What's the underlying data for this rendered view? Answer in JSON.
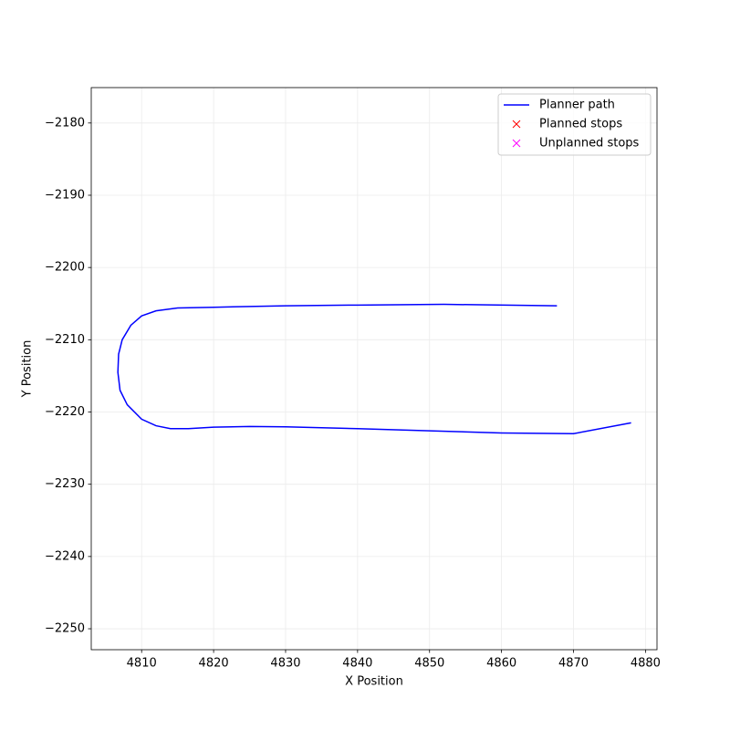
{
  "chart_data": {
    "type": "line",
    "xlabel": "X Position",
    "ylabel": "Y Position",
    "xlim": [
      4803.0,
      4881.6
    ],
    "ylim": [
      -2252.9,
      -2175.1
    ],
    "xticks": [
      4810,
      4820,
      4830,
      4840,
      4850,
      4860,
      4870,
      4880
    ],
    "yticks": [
      {
        "value": -2180,
        "label": "−2180"
      },
      {
        "value": -2190,
        "label": "−2190"
      },
      {
        "value": -2200,
        "label": "−2200"
      },
      {
        "value": -2210,
        "label": "−2210"
      },
      {
        "value": -2220,
        "label": "−2220"
      },
      {
        "value": -2230,
        "label": "−2230"
      },
      {
        "value": -2240,
        "label": "−2240"
      },
      {
        "value": -2250,
        "label": "−2250"
      }
    ],
    "grid": true,
    "legend": "upper right",
    "series": [
      {
        "name": "Planner path",
        "color": "#0000ff",
        "style": "line",
        "x": [
          4867.7,
          4852,
          4840,
          4830,
          4820,
          4815,
          4812,
          4810,
          4808.5,
          4807.3,
          4806.8,
          4806.7,
          4807,
          4808,
          4810,
          4812,
          4814,
          4816.5,
          4820,
          4825,
          4830,
          4840,
          4850,
          4860,
          4870,
          4878
        ],
        "y": [
          -2205.3,
          -2205.1,
          -2205.2,
          -2205.3,
          -2205.5,
          -2205.6,
          -2206.0,
          -2206.7,
          -2208.0,
          -2210.0,
          -2212.0,
          -2214.5,
          -2217.0,
          -2219.0,
          -2221.0,
          -2221.9,
          -2222.3,
          -2222.3,
          -2222.1,
          -2222.0,
          -2222.05,
          -2222.3,
          -2222.6,
          -2222.9,
          -2223.0,
          -2221.5
        ]
      },
      {
        "name": "Planned stops",
        "color": "#ff0000",
        "style": "x",
        "x": [],
        "y": []
      },
      {
        "name": "Unplanned stops",
        "color": "#ff00ff",
        "style": "x",
        "x": [],
        "y": []
      }
    ]
  }
}
